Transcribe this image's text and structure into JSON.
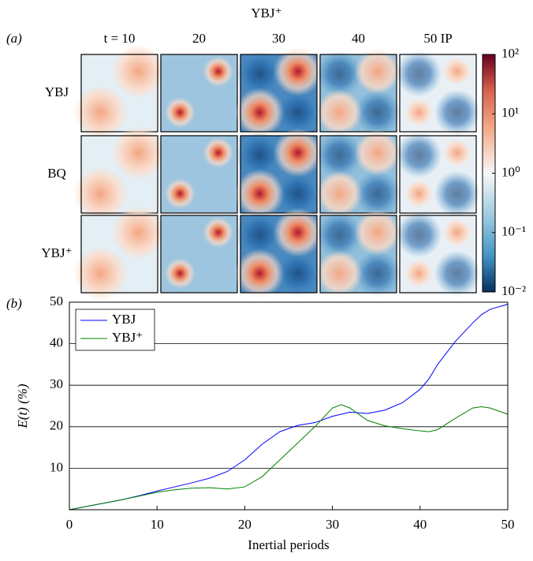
{
  "chart_data": [
    {
      "type": "image-grid",
      "title": "YBJ⁺",
      "panel_label": "(a)",
      "columns": [
        "t = 10",
        "20",
        "30",
        "40",
        "50 IP"
      ],
      "rows": [
        "YBJ",
        "BQ",
        "YBJ⁺"
      ],
      "colorbar": {
        "scale": "log",
        "zlim": [
          0.01,
          100
        ],
        "zticks": [
          {
            "value": 100,
            "label": "10²"
          },
          {
            "value": 10,
            "label": "10¹"
          },
          {
            "value": 1,
            "label": "10⁰"
          },
          {
            "value": 0.1,
            "label": "10⁻¹"
          },
          {
            "value": 0.01,
            "label": "10⁻²"
          }
        ]
      }
    },
    {
      "type": "line",
      "panel_label": "(b)",
      "xlabel": "Inertial periods",
      "ylabel": "E(t) (%)",
      "x": [
        0,
        2,
        4,
        6,
        8,
        10,
        12,
        14,
        16,
        18,
        20,
        22,
        24,
        26,
        28,
        30,
        31,
        32,
        34,
        36,
        38,
        40,
        41,
        42,
        44,
        46,
        47,
        48,
        50
      ],
      "series": [
        {
          "name": "YBJ",
          "color": "#0000ff",
          "values": [
            0,
            0.8,
            1.6,
            2.4,
            3.4,
            4.5,
            5.5,
            6.5,
            7.6,
            9.2,
            12,
            15.8,
            18.8,
            20.3,
            21,
            22.5,
            23,
            23.5,
            23.2,
            24,
            25.8,
            29,
            31.5,
            35,
            40.5,
            45,
            47,
            48.3,
            49.5
          ]
        },
        {
          "name": "YBJ⁺",
          "color": "#008000",
          "values": [
            0,
            0.8,
            1.6,
            2.4,
            3.3,
            4.2,
            4.8,
            5.2,
            5.3,
            5,
            5.5,
            8,
            12,
            16,
            20,
            24.5,
            25.3,
            24.5,
            21.5,
            20.2,
            19.5,
            19,
            18.8,
            19.3,
            22,
            24.5,
            24.8,
            24.5,
            23
          ]
        }
      ],
      "xlim": [
        0,
        50
      ],
      "ylim": [
        0,
        50
      ],
      "xticks": [
        0,
        10,
        20,
        30,
        40,
        50
      ],
      "yticks": [
        10,
        20,
        30,
        40,
        50
      ],
      "grid": true,
      "legend": "upper-left"
    }
  ]
}
